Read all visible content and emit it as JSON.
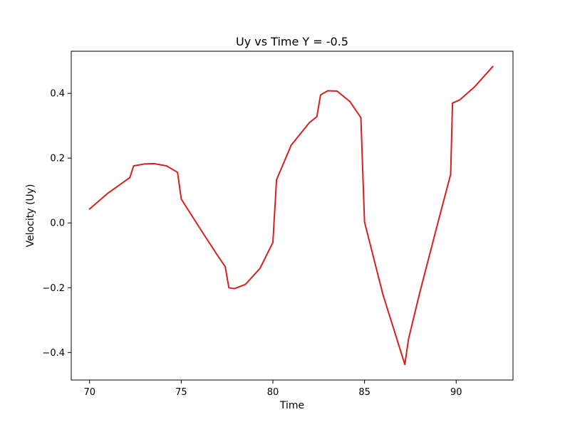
{
  "chart_data": {
    "type": "line",
    "title": "Uy vs Time Y = -0.5",
    "xlabel": "Time",
    "ylabel": "Velocity (Uy)",
    "xlim": [
      69.0,
      93.1
    ],
    "ylim": [
      -0.485,
      0.53
    ],
    "xticks": [
      70,
      75,
      80,
      85,
      90
    ],
    "xtick_labels": [
      "70",
      "75",
      "80",
      "85",
      "90"
    ],
    "yticks": [
      -0.4,
      -0.2,
      0.0,
      0.2,
      0.4
    ],
    "ytick_labels": [
      "−0.4",
      "−0.2",
      "0.0",
      "0.2",
      "0.4"
    ],
    "grid": false,
    "legend": "none",
    "series": [
      {
        "color": "#d62020",
        "x": [
          70.0,
          71.0,
          72.2,
          72.4,
          73.0,
          73.5,
          74.2,
          74.8,
          75.0,
          76.0,
          77.0,
          77.4,
          77.6,
          77.9,
          78.5,
          79.3,
          80.0,
          80.2,
          81.0,
          82.0,
          82.4,
          82.6,
          83.0,
          83.5,
          84.2,
          84.8,
          85.0,
          86.0,
          87.2,
          87.4,
          88.0,
          89.0,
          89.7,
          89.8,
          90.2,
          91.0,
          92.0
        ],
        "y": [
          0.043,
          0.092,
          0.14,
          0.176,
          0.182,
          0.183,
          0.176,
          0.156,
          0.074,
          -0.015,
          -0.102,
          -0.135,
          -0.2,
          -0.203,
          -0.19,
          -0.14,
          -0.06,
          0.133,
          0.24,
          0.31,
          0.328,
          0.395,
          0.408,
          0.407,
          0.375,
          0.325,
          0.003,
          -0.22,
          -0.437,
          -0.358,
          -0.218,
          0.0,
          0.15,
          0.37,
          0.38,
          0.42,
          0.483
        ]
      }
    ]
  }
}
